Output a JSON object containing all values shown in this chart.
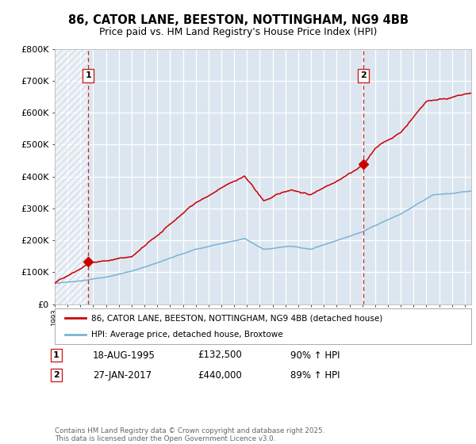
{
  "title_line1": "86, CATOR LANE, BEESTON, NOTTINGHAM, NG9 4BB",
  "title_line2": "Price paid vs. HM Land Registry's House Price Index (HPI)",
  "plot_bg_color": "#dce6f0",
  "red_color": "#cc0000",
  "blue_color": "#7ab3d4",
  "vline_color": "#cc2222",
  "sale1_year": 1995.63,
  "sale1_price": 132500,
  "sale2_year": 2017.07,
  "sale2_price": 440000,
  "sale1_date": "18-AUG-1995",
  "sale1_price_str": "£132,500",
  "sale1_pct": "90% ↑ HPI",
  "sale2_date": "27-JAN-2017",
  "sale2_price_str": "£440,000",
  "sale2_pct": "89% ↑ HPI",
  "ylim_max": 800000,
  "xmin": 1993.0,
  "xmax": 2025.5,
  "legend_line1": "86, CATOR LANE, BEESTON, NOTTINGHAM, NG9 4BB (detached house)",
  "legend_line2": "HPI: Average price, detached house, Broxtowe",
  "footer1": "Contains HM Land Registry data © Crown copyright and database right 2025.",
  "footer2": "This data is licensed under the Open Government Licence v3.0."
}
